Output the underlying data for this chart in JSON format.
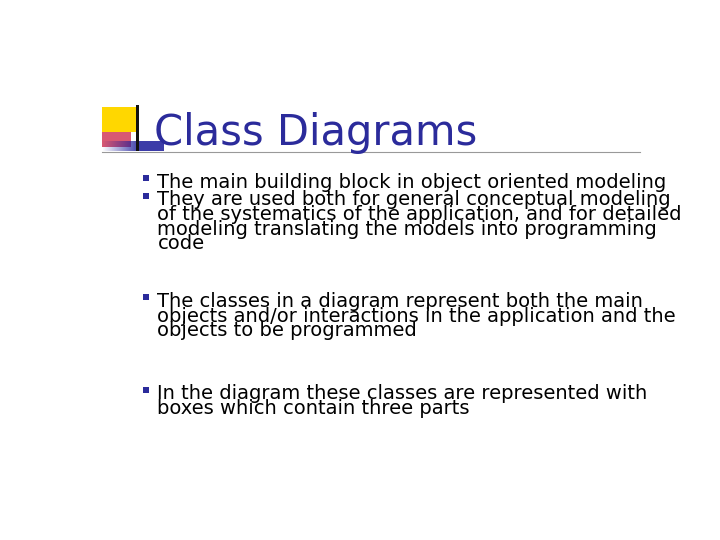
{
  "title": "Class Diagrams",
  "title_color": "#2B2B9B",
  "title_fontsize": 30,
  "background_color": "#FFFFFF",
  "bullet_color": "#000000",
  "bullet_marker_color": "#1A1A8C",
  "body_fontsize": 14,
  "bullets": [
    "The main building block in object oriented modeling",
    "They are used both for general conceptual modeling\nof the systematics of the application, and for detailed\nmodeling translating the models into programming\ncode",
    "The classes in a diagram represent both the main\nobjects and/or interactions in the application and the\nobjects to be programmed",
    "In the diagram these classes are represented with\nboxes which contain three parts"
  ],
  "separator_color": "#999999",
  "accent_yellow": "#FFD700",
  "accent_red": "#CC2244",
  "accent_blue": "#1A1A8C",
  "bullet_sq_color": "#2B2B9B",
  "bullet_sq_size": 8
}
